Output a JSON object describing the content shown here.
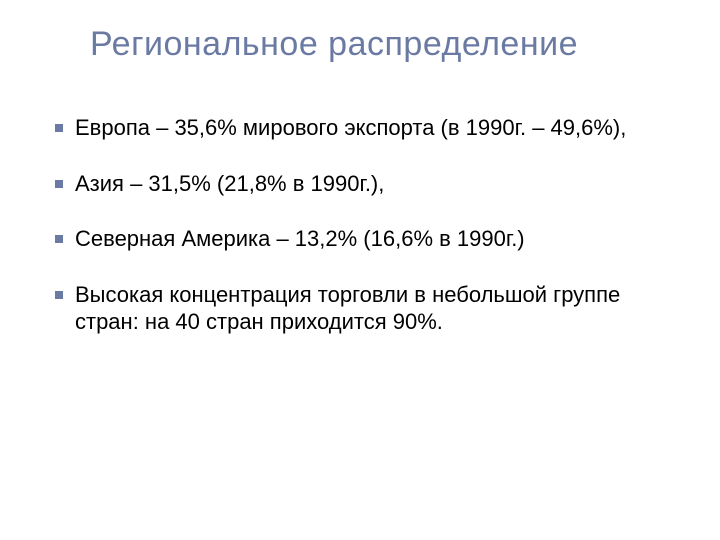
{
  "slide": {
    "title": "Региональное распределение",
    "title_color": "#6b7aa3",
    "title_fontsize": 34,
    "bullet_color": "#6b7aa3",
    "bullet_size": 8,
    "text_color": "#000000",
    "text_fontsize": 22,
    "background_color": "#ffffff",
    "bullets": [
      "Европа – 35,6% мирового экспорта (в 1990г. – 49,6%),",
      "Азия – 31,5% (21,8% в 1990г.),",
      "Северная Америка – 13,2% (16,6% в 1990г.)",
      "Высокая концентрация торговли в небольшой группе стран: на 40 стран приходится 90%."
    ]
  }
}
